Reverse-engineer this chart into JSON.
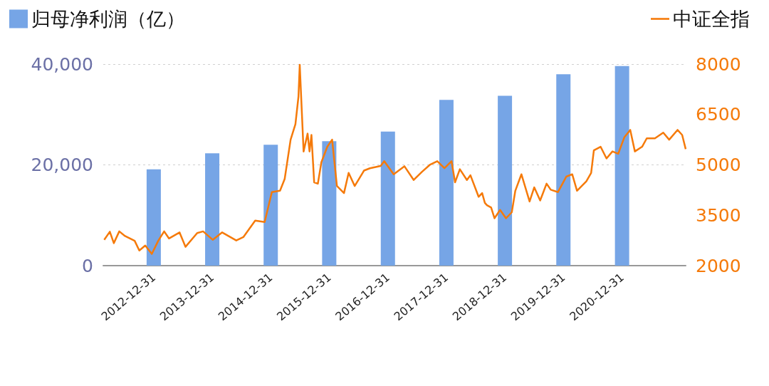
{
  "chart_data": {
    "type": "bar",
    "legend": "top",
    "grid": "y",
    "xlim": [
      "2012-02-20",
      "2022-02-01"
    ],
    "xticks": [
      "2012-12-31",
      "2013-12-31",
      "2014-12-31",
      "2015-12-31",
      "2016-12-31",
      "2017-12-31",
      "2018-12-31",
      "2019-12-31",
      "2020-12-31"
    ],
    "ylim": [
      0,
      40000
    ],
    "yticks": [
      {
        "value": 0,
        "label": "0"
      },
      {
        "value": 20000,
        "label": "20,000"
      },
      {
        "value": 40000,
        "label": "40,000"
      }
    ],
    "y2lim": [
      2000,
      8000
    ],
    "y2ticks": [
      2000,
      3500,
      5000,
      6500,
      8000
    ],
    "series": [
      {
        "name": "归母净利润（亿）",
        "color": "#76a5e6",
        "x": [
          "2012-12-31",
          "2013-12-31",
          "2014-12-31",
          "2015-12-31",
          "2016-12-31",
          "2017-12-31",
          "2018-12-31",
          "2019-12-31",
          "2020-12-31"
        ],
        "values": [
          19100,
          22300,
          24000,
          24700,
          26600,
          32900,
          33700,
          38000,
          39600
        ]
      },
      {
        "name": "中证全指",
        "type": "line",
        "axis": "y2",
        "color": "#f57a0a",
        "x": [
          "2012-02-26",
          "2012-04-01",
          "2012-04-26",
          "2012-05-30",
          "2012-07-05",
          "2012-09-03",
          "2012-10-02",
          "2012-11-08",
          "2012-12-19",
          "2013-01-28",
          "2013-03-06",
          "2013-04-05",
          "2013-06-10",
          "2013-07-17",
          "2013-09-28",
          "2013-11-04",
          "2014-01-03",
          "2014-03-03",
          "2014-05-30",
          "2014-07-13",
          "2014-09-25",
          "2014-11-23",
          "2015-01-07",
          "2015-02-27",
          "2015-03-28",
          "2015-05-04",
          "2015-06-03",
          "2015-06-22",
          "2015-06-30",
          "2015-07-24",
          "2015-08-18",
          "2015-08-30",
          "2015-09-11",
          "2015-09-28",
          "2015-10-21",
          "2015-11-12",
          "2015-12-19",
          "2016-01-18",
          "2016-02-17",
          "2016-04-01",
          "2016-04-30",
          "2016-06-07",
          "2016-08-04",
          "2016-09-10",
          "2016-11-16",
          "2016-12-08",
          "2017-02-05",
          "2017-04-13",
          "2017-06-10",
          "2017-07-31",
          "2017-09-21",
          "2017-11-04",
          "2017-12-19",
          "2018-02-01",
          "2018-02-23",
          "2018-03-25",
          "2018-05-08",
          "2018-05-30",
          "2018-07-20",
          "2018-08-11",
          "2018-08-28",
          "2018-09-10",
          "2018-10-06",
          "2018-10-27",
          "2018-12-01",
          "2019-01-07",
          "2019-02-12",
          "2019-03-06",
          "2019-04-13",
          "2019-06-03",
          "2019-07-02",
          "2019-08-08",
          "2019-09-17",
          "2019-10-13",
          "2019-11-27",
          "2020-01-18",
          "2020-02-24",
          "2020-03-25",
          "2020-05-22",
          "2020-06-21",
          "2020-07-08",
          "2020-08-19",
          "2020-09-25",
          "2020-11-01",
          "2020-12-07",
          "2021-01-14",
          "2021-02-20",
          "2021-03-21",
          "2021-05-05",
          "2021-06-03",
          "2021-07-24",
          "2021-09-14",
          "2021-10-21",
          "2021-12-12",
          "2022-01-10",
          "2022-02-01"
        ],
        "values": [
          2770,
          3010,
          2670,
          3020,
          2880,
          2740,
          2450,
          2600,
          2350,
          2740,
          3020,
          2810,
          2990,
          2560,
          2970,
          3020,
          2770,
          2990,
          2750,
          2850,
          3340,
          3300,
          4190,
          4230,
          4580,
          5750,
          6210,
          7030,
          7980,
          5400,
          5930,
          5400,
          5890,
          4480,
          4440,
          5080,
          5540,
          5750,
          4370,
          4160,
          4760,
          4370,
          4830,
          4900,
          4970,
          5110,
          4720,
          4960,
          4550,
          4790,
          5010,
          5110,
          4900,
          5110,
          4480,
          4870,
          4550,
          4690,
          4050,
          4160,
          3870,
          3800,
          3730,
          3410,
          3660,
          3410,
          3590,
          4230,
          4720,
          3910,
          4330,
          3940,
          4440,
          4260,
          4190,
          4650,
          4720,
          4230,
          4510,
          4760,
          5430,
          5540,
          5190,
          5400,
          5330,
          5820,
          6040,
          5400,
          5540,
          5790,
          5790,
          5960,
          5750,
          6040,
          5890,
          5470
        ]
      }
    ]
  }
}
